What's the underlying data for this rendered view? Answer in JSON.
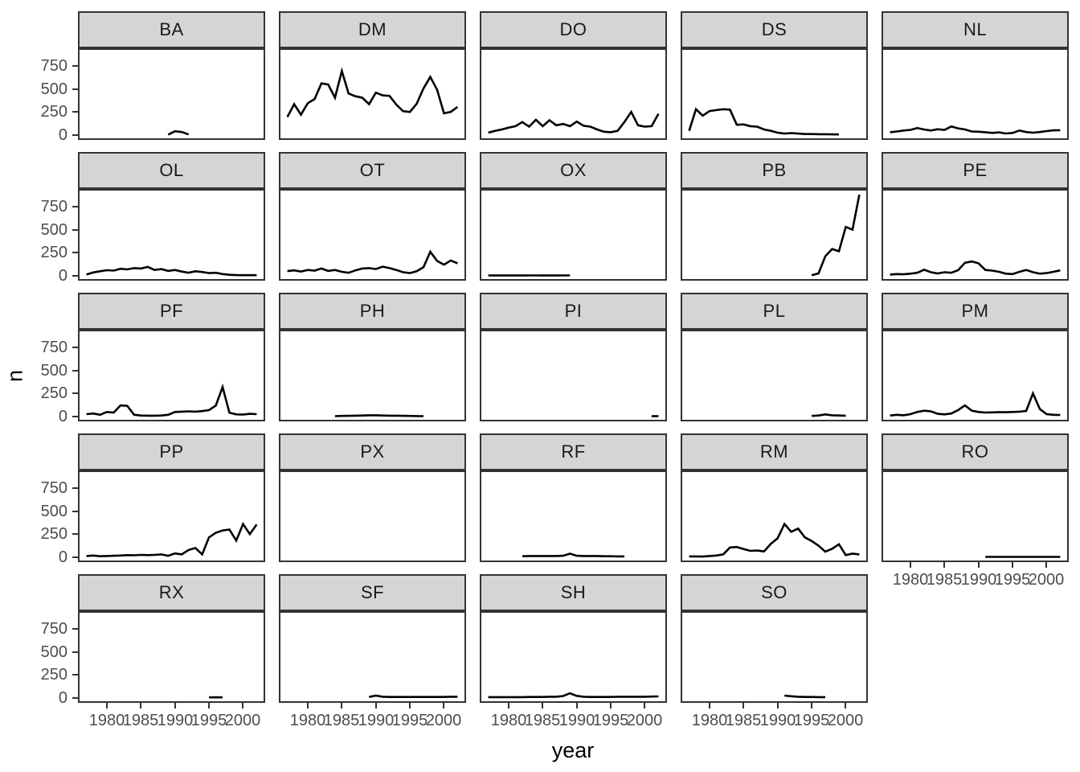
{
  "figure": {
    "background": "#ffffff",
    "kind": "faceted line chart (small multiples)"
  },
  "colors": {
    "strip_fill": "#d5d5d5",
    "strip_text": "#1a1a1a",
    "panel_border": "#333333",
    "line": "#000000",
    "tick_text": "#4d4d4d",
    "axis_title_text": "#000000",
    "background": "#ffffff"
  },
  "chart_data": {
    "type": "line",
    "title": "",
    "x_label": "year",
    "y_label": "n",
    "grid": false,
    "legend": false,
    "shared_axes": true,
    "x_domain": [
      1975.75,
      2003.25
    ],
    "y_domain": [
      -54,
      942
    ],
    "x_ticks": [
      1980,
      1985,
      1990,
      1995,
      2000
    ],
    "y_ticks": [
      0,
      250,
      500,
      750
    ],
    "columns": 5,
    "facets": [
      {
        "code": "BA",
        "start_year": 1989,
        "values": [
          4,
          40,
          32,
          5
        ]
      },
      {
        "code": "DM",
        "start_year": 1977,
        "values": [
          195,
          335,
          220,
          345,
          390,
          560,
          548,
          405,
          695,
          450,
          420,
          405,
          335,
          460,
          430,
          425,
          330,
          258,
          250,
          340,
          505,
          630,
          490,
          235,
          250,
          305
        ]
      },
      {
        "code": "DO",
        "start_year": 1977,
        "values": [
          25,
          45,
          60,
          80,
          95,
          140,
          90,
          165,
          95,
          160,
          105,
          120,
          95,
          145,
          100,
          90,
          60,
          35,
          30,
          45,
          140,
          250,
          105,
          90,
          95,
          230
        ]
      },
      {
        "code": "DS",
        "start_year": 1977,
        "values": [
          45,
          280,
          210,
          260,
          270,
          280,
          275,
          110,
          115,
          95,
          90,
          60,
          45,
          25,
          15,
          20,
          15,
          10,
          10,
          8,
          8,
          6,
          5
        ]
      },
      {
        "code": "NL",
        "start_year": 1977,
        "values": [
          30,
          38,
          48,
          55,
          75,
          60,
          48,
          62,
          55,
          92,
          72,
          60,
          38,
          35,
          30,
          22,
          28,
          16,
          22,
          48,
          32,
          25,
          32,
          42,
          50,
          52
        ]
      },
      {
        "code": "OL",
        "start_year": 1977,
        "values": [
          12,
          35,
          48,
          60,
          55,
          75,
          68,
          82,
          78,
          95,
          62,
          72,
          52,
          62,
          45,
          32,
          48,
          40,
          28,
          32,
          18,
          10,
          6,
          5,
          5,
          5
        ]
      },
      {
        "code": "OT",
        "start_year": 1977,
        "values": [
          50,
          58,
          45,
          62,
          55,
          78,
          52,
          62,
          42,
          32,
          58,
          78,
          82,
          72,
          98,
          82,
          62,
          38,
          28,
          48,
          92,
          260,
          160,
          120,
          165,
          135
        ]
      },
      {
        "code": "OX",
        "start_year": 1977,
        "values": [
          3,
          2,
          3,
          2,
          3,
          2,
          3,
          3,
          2,
          3,
          2,
          3,
          3
        ]
      },
      {
        "code": "PB",
        "start_year": 1995,
        "values": [
          5,
          25,
          210,
          290,
          265,
          530,
          500,
          880
        ]
      },
      {
        "code": "PE",
        "start_year": 1977,
        "values": [
          12,
          18,
          15,
          22,
          32,
          65,
          38,
          25,
          38,
          32,
          60,
          140,
          155,
          135,
          62,
          55,
          42,
          22,
          18,
          42,
          62,
          38,
          22,
          28,
          42,
          58
        ]
      },
      {
        "code": "PF",
        "start_year": 1977,
        "values": [
          25,
          32,
          18,
          48,
          42,
          120,
          115,
          18,
          10,
          8,
          8,
          10,
          18,
          48,
          52,
          55,
          52,
          58,
          68,
          118,
          320,
          40,
          22,
          20,
          28,
          25
        ]
      },
      {
        "code": "PH",
        "start_year": 1984,
        "values": [
          3,
          5,
          6,
          8,
          10,
          12,
          12,
          10,
          8,
          8,
          6,
          5,
          4,
          3
        ]
      },
      {
        "code": "PI",
        "start_year": 2001,
        "values": [
          3,
          3
        ]
      },
      {
        "code": "PL",
        "start_year": 1995,
        "values": [
          5,
          10,
          22,
          12,
          10,
          8
        ]
      },
      {
        "code": "PM",
        "start_year": 1977,
        "values": [
          10,
          18,
          12,
          25,
          48,
          62,
          55,
          28,
          22,
          32,
          68,
          120,
          62,
          48,
          42,
          44,
          46,
          46,
          48,
          52,
          60,
          250,
          80,
          25,
          18,
          15
        ]
      },
      {
        "code": "PP",
        "start_year": 1977,
        "values": [
          12,
          18,
          10,
          12,
          15,
          18,
          22,
          20,
          25,
          22,
          25,
          30,
          15,
          40,
          30,
          78,
          100,
          30,
          215,
          265,
          290,
          300,
          180,
          360,
          250,
          355
        ]
      },
      {
        "code": "PX",
        "start_year": null,
        "values": []
      },
      {
        "code": "RF",
        "start_year": 1982,
        "values": [
          10,
          12,
          12,
          12,
          12,
          12,
          15,
          38,
          15,
          12,
          12,
          12,
          10,
          10,
          8,
          8
        ]
      },
      {
        "code": "RM",
        "start_year": 1977,
        "values": [
          8,
          8,
          6,
          12,
          18,
          30,
          105,
          110,
          88,
          68,
          72,
          62,
          145,
          205,
          360,
          275,
          310,
          215,
          175,
          125,
          60,
          90,
          140,
          22,
          38,
          30
        ]
      },
      {
        "code": "RO",
        "start_year": 1991,
        "values": [
          3,
          3,
          3,
          3,
          3,
          3,
          3,
          3,
          3,
          3,
          3,
          3
        ]
      },
      {
        "code": "RX",
        "start_year": 1995,
        "values": [
          5,
          6,
          5
        ]
      },
      {
        "code": "SF",
        "start_year": 1989,
        "values": [
          10,
          25,
          12,
          10,
          10,
          10,
          10,
          10,
          10,
          10,
          10,
          10,
          12,
          12
        ]
      },
      {
        "code": "SH",
        "start_year": 1977,
        "values": [
          8,
          8,
          8,
          8,
          8,
          8,
          10,
          10,
          10,
          12,
          12,
          20,
          50,
          22,
          12,
          10,
          10,
          10,
          10,
          12,
          12,
          12,
          12,
          12,
          14,
          16
        ]
      },
      {
        "code": "SO",
        "start_year": 1991,
        "values": [
          25,
          18,
          12,
          10,
          10,
          8,
          8
        ]
      }
    ]
  }
}
